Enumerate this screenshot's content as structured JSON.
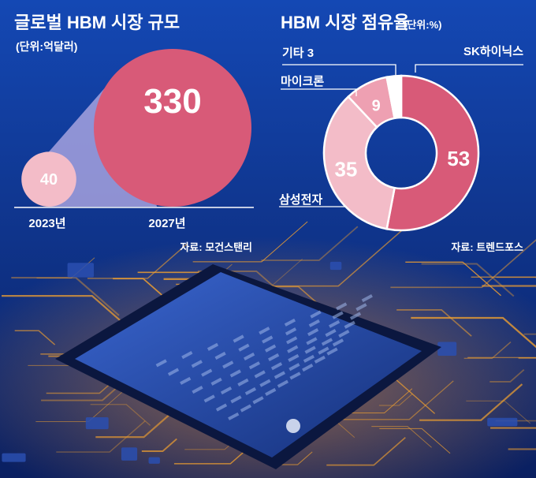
{
  "colors": {
    "background_top": "#1448b4",
    "background_bottom": "#0a1f60",
    "circuit_gold": "#f0a030",
    "chip_blue": "#2a4fb0",
    "accent_pink": "#d85a78",
    "pink_medium": "#eea0b2",
    "pink_light": "#f3bcc8",
    "text_white": "#ffffff"
  },
  "chart_data": [
    {
      "type": "bubble",
      "title": "글로벌 HBM 시장 규모",
      "unit": "(단위:억달러)",
      "categories": [
        "2023년",
        "2027년"
      ],
      "values": [
        40,
        330
      ],
      "source": "자료: 모건스탠리"
    },
    {
      "type": "pie",
      "title": "HBM 시장 점유율",
      "unit": "(단위:%)",
      "slices": [
        {
          "label": "SK하이닉스",
          "value": 53,
          "color": "#d85a78"
        },
        {
          "label": "삼성전자",
          "value": 35,
          "color": "#f3bcc8"
        },
        {
          "label": "마이크론",
          "value": 9,
          "color": "#eea0b2"
        },
        {
          "label": "기타",
          "value": 3,
          "color": "#ffffff"
        }
      ],
      "source": "자료: 트렌드포스"
    }
  ]
}
